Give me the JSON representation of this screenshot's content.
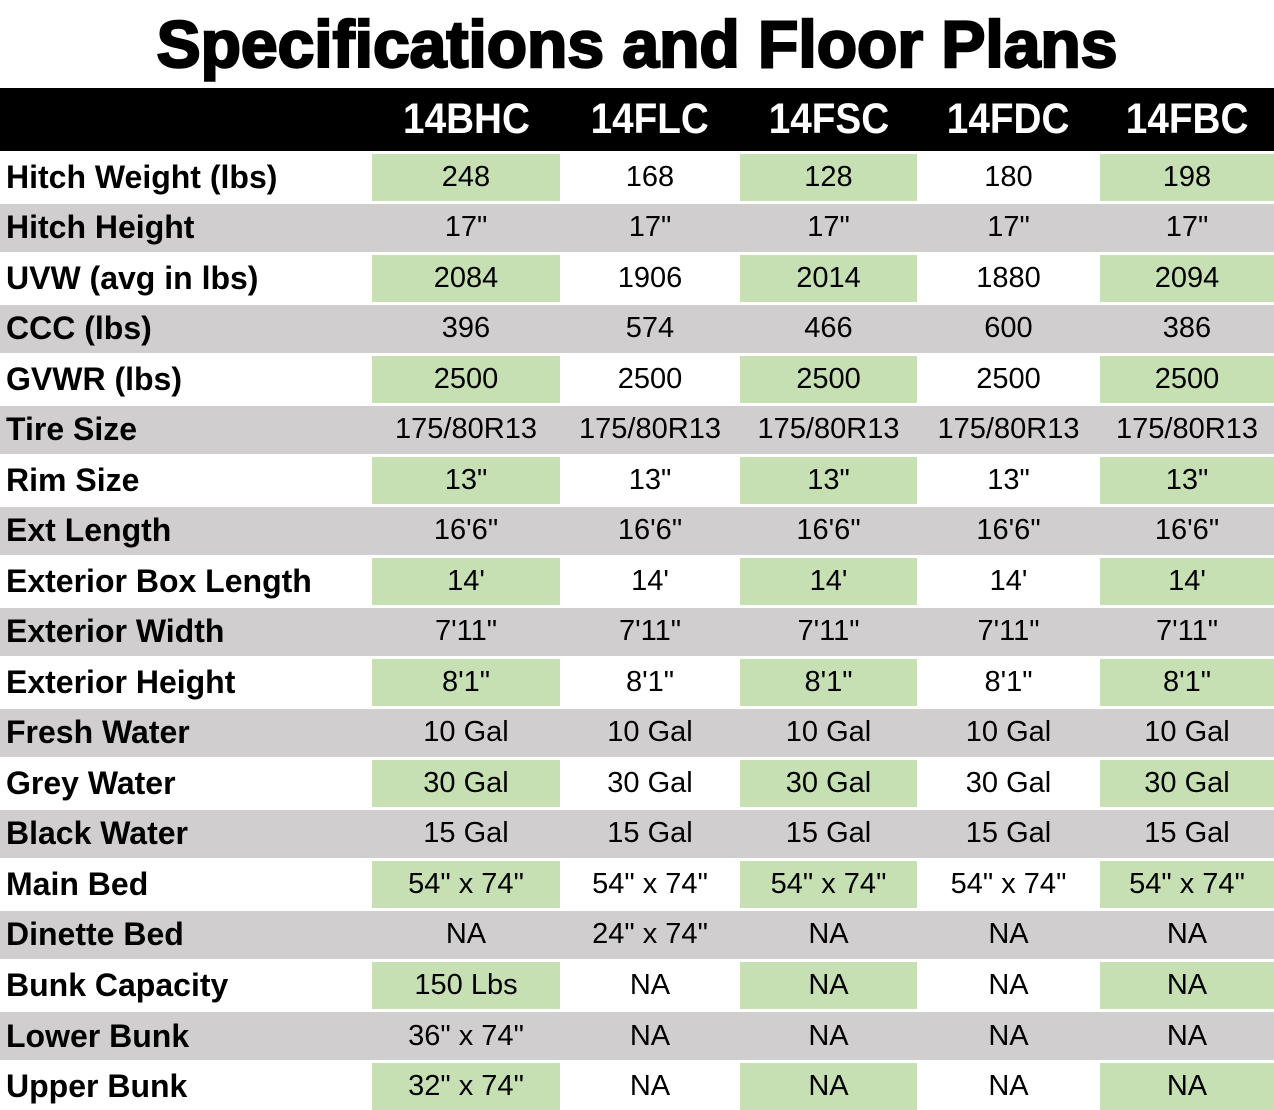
{
  "title": "Specifications and Floor Plans",
  "colors": {
    "header_bg": "#000000",
    "header_text": "#ffffff",
    "green_cell": "#c6e0b4",
    "gray_row": "#d0cece",
    "white_cell": "#ffffff"
  },
  "table": {
    "columns": [
      "14BHC",
      "14FLC",
      "14FSC",
      "14FDC",
      "14FBC"
    ],
    "rows": [
      {
        "label": "Hitch Weight (lbs)",
        "values": [
          "248",
          "168",
          "128",
          "180",
          "198"
        ]
      },
      {
        "label": "Hitch Height",
        "values": [
          "17\"",
          "17\"",
          "17\"",
          "17\"",
          "17\""
        ]
      },
      {
        "label": "UVW (avg in lbs)",
        "values": [
          "2084",
          "1906",
          "2014",
          "1880",
          "2094"
        ]
      },
      {
        "label": "CCC (lbs)",
        "values": [
          "396",
          "574",
          "466",
          "600",
          "386"
        ]
      },
      {
        "label": "GVWR (lbs)",
        "values": [
          "2500",
          "2500",
          "2500",
          "2500",
          "2500"
        ]
      },
      {
        "label": "Tire Size",
        "values": [
          "175/80R13",
          "175/80R13",
          "175/80R13",
          "175/80R13",
          "175/80R13"
        ]
      },
      {
        "label": "Rim Size",
        "values": [
          "13\"",
          "13\"",
          "13\"",
          "13\"",
          "13\""
        ]
      },
      {
        "label": "Ext Length",
        "values": [
          "16'6\"",
          "16'6\"",
          "16'6\"",
          "16'6\"",
          "16'6\""
        ]
      },
      {
        "label": "Exterior Box Length",
        "values": [
          "14'",
          "14'",
          "14'",
          "14'",
          "14'"
        ]
      },
      {
        "label": "Exterior Width",
        "values": [
          "7'11\"",
          "7'11\"",
          "7'11\"",
          "7'11\"",
          "7'11\""
        ]
      },
      {
        "label": "Exterior Height",
        "values": [
          "8'1\"",
          "8'1\"",
          "8'1\"",
          "8'1\"",
          "8'1\""
        ]
      },
      {
        "label": "Fresh Water",
        "values": [
          "10 Gal",
          "10 Gal",
          "10 Gal",
          "10 Gal",
          "10 Gal"
        ]
      },
      {
        "label": "Grey Water",
        "values": [
          "30 Gal",
          "30 Gal",
          "30 Gal",
          "30 Gal",
          "30 Gal"
        ]
      },
      {
        "label": "Black Water",
        "values": [
          "15 Gal",
          "15 Gal",
          "15 Gal",
          "15 Gal",
          "15 Gal"
        ]
      },
      {
        "label": "Main Bed",
        "values": [
          "54\" x 74\"",
          "54\" x 74\"",
          "54\" x 74\"",
          "54\" x 74\"",
          "54\" x 74\""
        ]
      },
      {
        "label": "Dinette Bed",
        "values": [
          "NA",
          "24\" x 74\"",
          "NA",
          "NA",
          "NA"
        ]
      },
      {
        "label": "Bunk Capacity",
        "values": [
          "150 Lbs",
          "NA",
          "NA",
          "NA",
          "NA"
        ]
      },
      {
        "label": "Lower Bunk",
        "values": [
          "36\" x 74\"",
          "NA",
          "NA",
          "NA",
          "NA"
        ]
      },
      {
        "label": "Upper Bunk",
        "values": [
          "32\" x 74\"",
          "NA",
          "NA",
          "NA",
          "NA"
        ]
      }
    ]
  }
}
